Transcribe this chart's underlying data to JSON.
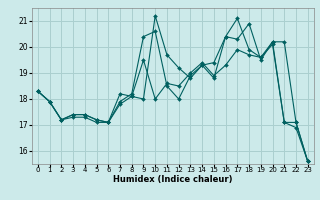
{
  "xlabel": "Humidex (Indice chaleur)",
  "background_color": "#cceaea",
  "grid_color": "#aacfcf",
  "line_color": "#006060",
  "xlim": [
    -0.5,
    23.5
  ],
  "ylim": [
    15.5,
    21.5
  ],
  "xticks": [
    0,
    1,
    2,
    3,
    4,
    5,
    6,
    7,
    8,
    9,
    10,
    11,
    12,
    13,
    14,
    15,
    16,
    17,
    18,
    19,
    20,
    21,
    22,
    23
  ],
  "yticks": [
    16,
    17,
    18,
    19,
    20,
    21
  ],
  "series": [
    [
      18.3,
      17.9,
      17.2,
      17.4,
      17.4,
      17.2,
      17.1,
      18.2,
      18.1,
      18.0,
      21.2,
      19.7,
      19.2,
      18.8,
      19.3,
      19.4,
      20.4,
      20.3,
      20.9,
      19.5,
      20.2,
      17.1,
      16.9,
      15.6
    ],
    [
      18.3,
      17.9,
      17.2,
      17.4,
      17.4,
      17.2,
      17.1,
      17.9,
      18.2,
      20.4,
      20.6,
      18.5,
      18.0,
      18.9,
      19.3,
      18.8,
      20.4,
      21.1,
      19.9,
      19.6,
      20.2,
      20.2,
      17.1,
      15.6
    ],
    [
      18.3,
      17.9,
      17.2,
      17.3,
      17.3,
      17.1,
      17.1,
      17.8,
      18.1,
      19.5,
      18.0,
      18.6,
      18.5,
      19.0,
      19.4,
      18.9,
      19.3,
      19.9,
      19.7,
      19.6,
      20.1,
      17.1,
      17.1,
      15.6
    ]
  ]
}
